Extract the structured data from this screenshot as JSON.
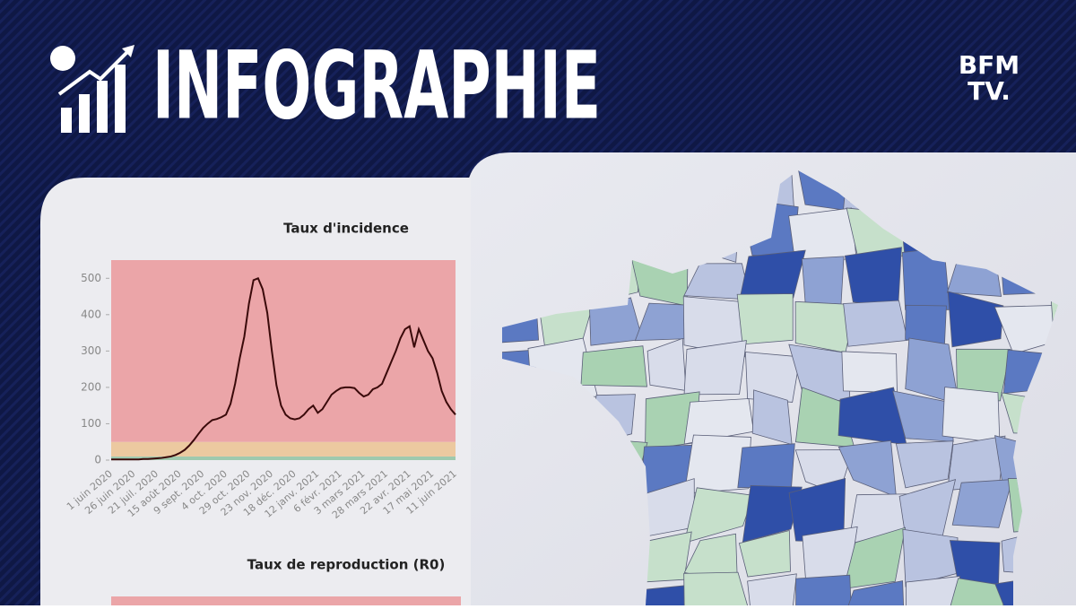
{
  "header": {
    "title": "INFOGRAPHIE",
    "logo": [
      "BFM",
      "TV."
    ]
  },
  "chart_data": [
    {
      "type": "line",
      "title": "Taux d'incidence",
      "categories": [
        "1 juin 2020",
        null,
        null,
        null,
        null,
        "26 juin 2020",
        null,
        null,
        null,
        null,
        "21 juil. 2020",
        null,
        null,
        null,
        null,
        "15 août 2020",
        null,
        null,
        null,
        null,
        "9 sept. 2020",
        null,
        null,
        null,
        null,
        "4 oct. 2020",
        null,
        null,
        null,
        null,
        "29 oct. 2020",
        null,
        null,
        null,
        null,
        "23 nov. 2020",
        null,
        null,
        null,
        null,
        "18 déc. 2020",
        null,
        null,
        null,
        null,
        "12 janv. 2021",
        null,
        null,
        null,
        null,
        "6 févr. 2021",
        null,
        null,
        null,
        null,
        "3 mars 2021",
        null,
        null,
        null,
        null,
        "28 mars 2021",
        null,
        null,
        null,
        null,
        "22 avr. 2021",
        null,
        null,
        null,
        null,
        "17 mai 2021",
        null,
        null,
        null,
        null,
        "11 juin 2021"
      ],
      "series": [
        {
          "name": "Taux d'incidence",
          "color": "#3a0a0a",
          "values": [
            2,
            2,
            2,
            2,
            2,
            2,
            2,
            3,
            3,
            4,
            5,
            6,
            8,
            10,
            14,
            20,
            28,
            40,
            55,
            72,
            88,
            100,
            110,
            113,
            118,
            125,
            155,
            210,
            280,
            340,
            430,
            495,
            500,
            470,
            405,
            300,
            206,
            150,
            125,
            115,
            112,
            115,
            125,
            140,
            150,
            130,
            140,
            160,
            180,
            190,
            198,
            200,
            200,
            198,
            185,
            175,
            180,
            195,
            200,
            210,
            240,
            270,
            300,
            335,
            360,
            368,
            310,
            360,
            330,
            300,
            280,
            240,
            190,
            160,
            140,
            125
          ]
        }
      ],
      "bands": [
        {
          "from": 0,
          "to": 10,
          "color": "#9fc9ae"
        },
        {
          "from": 10,
          "to": 50,
          "color": "#ecc9a0"
        },
        {
          "from": 50,
          "to": 550,
          "color": "#eba5a8"
        }
      ],
      "ylim": [
        0,
        550
      ],
      "yticks": [
        0,
        100,
        200,
        300,
        400,
        500
      ],
      "grid": false
    },
    {
      "type": "line",
      "title": "Taux de reproduction (R0)"
    }
  ]
}
